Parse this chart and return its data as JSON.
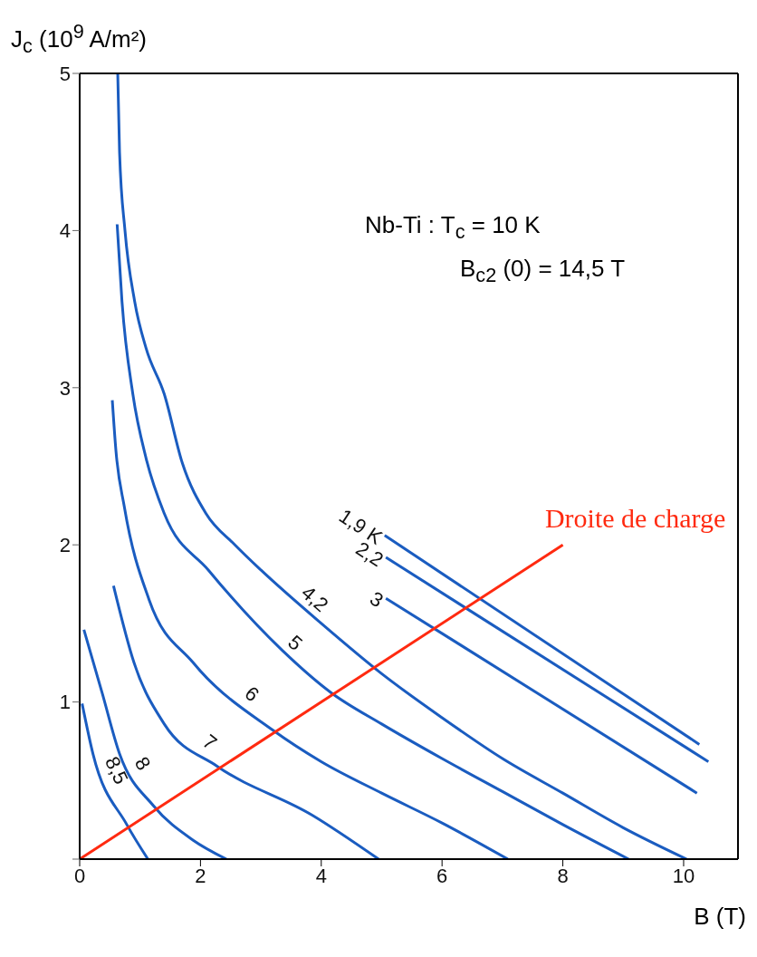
{
  "chart_data": {
    "type": "line",
    "xlabel": "B (T)",
    "ylabel": "J$_{c}$ (10$^{9}$ A/m²)",
    "xlim": [
      0,
      10.9
    ],
    "ylim": [
      0,
      5
    ],
    "xticks": [
      0,
      2,
      4,
      6,
      8,
      10
    ],
    "yticks": [
      {
        "value": 0,
        "label": null
      },
      1,
      2,
      3,
      4,
      5
    ],
    "marker": "none",
    "line_style": "solid",
    "annotations": [
      "Nb-Ti : T$_{c}$ = 10 K",
      "B$_{c2}$ (0) = 14,5 T"
    ],
    "series": [
      {
        "name": "1,9 K",
        "color": "#1a5cc0",
        "x": [
          5.05,
          10.26
        ],
        "values": [
          2.06,
          0.73
        ]
      },
      {
        "name": "2,2",
        "color": "#1a5cc0",
        "x": [
          5.07,
          10.41
        ],
        "values": [
          1.92,
          0.62
        ]
      },
      {
        "name": "3",
        "color": "#1a5cc0",
        "x": [
          5.07,
          10.22
        ],
        "values": [
          1.66,
          0.42
        ]
      },
      {
        "name": "4,2",
        "color": "#1a5cc0",
        "x": [
          0.63,
          0.66,
          0.75,
          0.91,
          1.1,
          1.4,
          1.7,
          2.09,
          2.57,
          3,
          4,
          5,
          6,
          7,
          8,
          9,
          10.05
        ],
        "values": [
          5,
          4.5,
          4,
          3.55,
          3.25,
          2.96,
          2.52,
          2.2,
          2,
          1.84,
          1.5,
          1.18,
          0.9,
          0.64,
          0.42,
          0.2,
          0
        ]
      },
      {
        "name": "5",
        "color": "#1a5cc0",
        "x": [
          0.62,
          0.7,
          0.88,
          1.1,
          1.4,
          2.13,
          3.35,
          4.16,
          5,
          6,
          7,
          8,
          9.09
        ],
        "values": [
          4.04,
          3.55,
          2.96,
          2.55,
          2.2,
          1.84,
          1.33,
          1.06,
          0.86,
          0.64,
          0.43,
          0.22,
          0
        ]
      },
      {
        "name": "6",
        "color": "#1a5cc0",
        "x": [
          0.54,
          0.6,
          0.74,
          1.15,
          1.88,
          3.2,
          4,
          5,
          6,
          7.09
        ],
        "values": [
          2.92,
          2.6,
          2.24,
          1.65,
          1.25,
          0.82,
          0.62,
          0.42,
          0.23,
          0
        ]
      },
      {
        "name": "7",
        "color": "#1a5cc0",
        "x": [
          0.56,
          0.9,
          1.4,
          2.28,
          3.85,
          4.95
        ],
        "values": [
          1.74,
          1.25,
          0.86,
          0.59,
          0.28,
          0
        ]
      },
      {
        "name": "8",
        "color": "#1a5cc0",
        "x": [
          0.07,
          0.37,
          0.66,
          1.22,
          1.88,
          2.43
        ],
        "values": [
          1.46,
          1.06,
          0.67,
          0.34,
          0.12,
          0
        ]
      },
      {
        "name": "8,5",
        "color": "#1a5cc0",
        "x": [
          0.04,
          0.22,
          0.78,
          1.13
        ],
        "values": [
          0.99,
          0.67,
          0.22,
          0
        ]
      },
      {
        "name": "Droite de charge",
        "color": "#ff2a10",
        "x": [
          0,
          8
        ],
        "values": [
          0,
          2
        ]
      }
    ]
  }
}
